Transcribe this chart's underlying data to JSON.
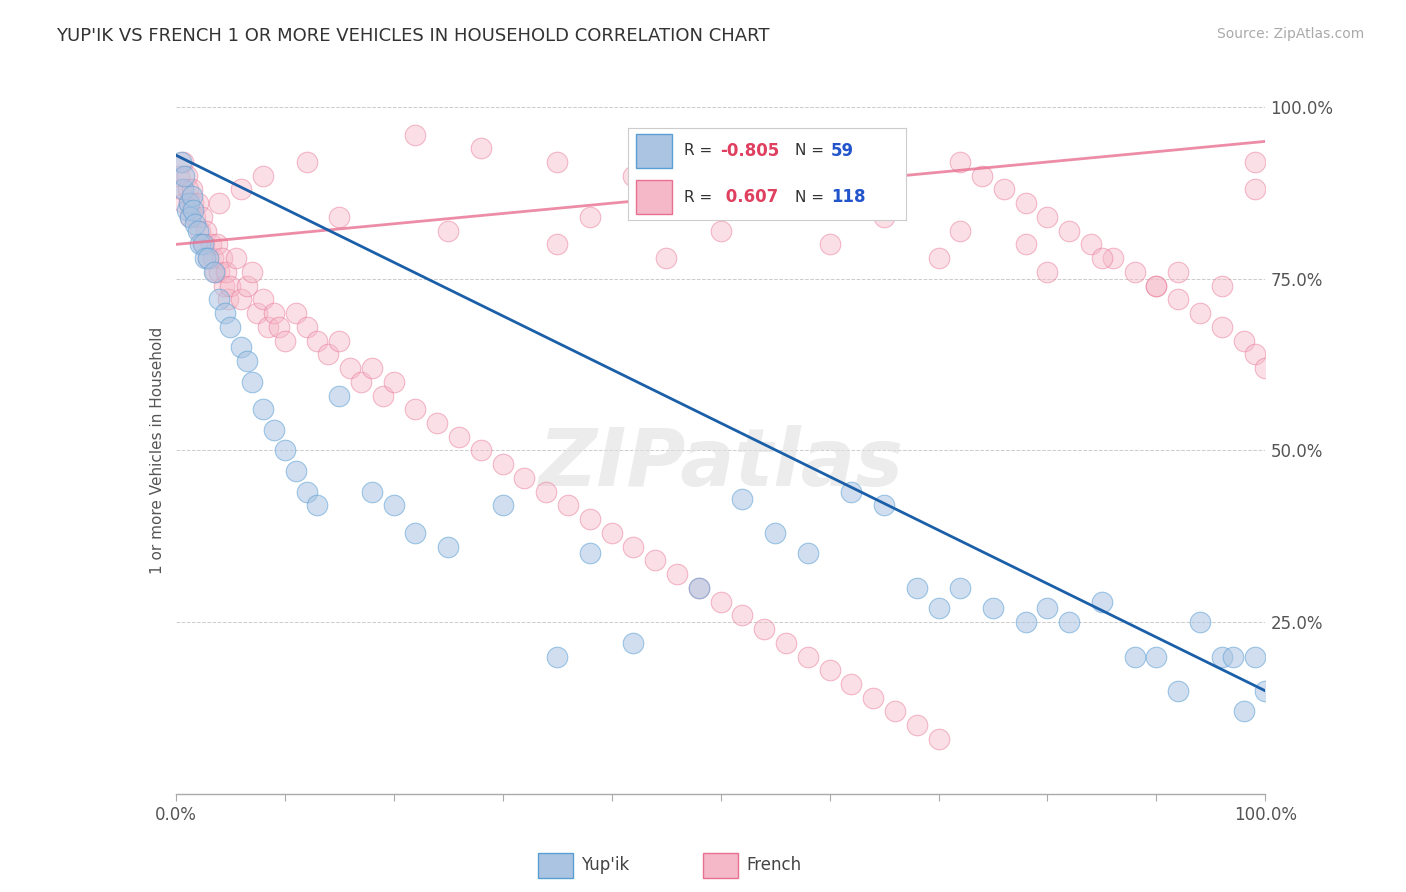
{
  "title": "YUP'IK VS FRENCH 1 OR MORE VEHICLES IN HOUSEHOLD CORRELATION CHART",
  "source_text": "Source: ZipAtlas.com",
  "ylabel": "1 or more Vehicles in Household",
  "yupik_color": "#aac4e2",
  "yupik_edge_color": "#5a9fd4",
  "french_color": "#f5b8c8",
  "french_edge_color": "#e87090",
  "yupik_line_color": "#1a5fa8",
  "french_line_color": "#e87090",
  "background_color": "#ffffff",
  "watermark_text": "ZIPatlas",
  "R_yupik": "-0.805",
  "N_yupik": "59",
  "R_french": "0.607",
  "N_french": "118",
  "yupik_scatter_x": [
    0.005,
    0.007,
    0.008,
    0.01,
    0.012,
    0.013,
    0.015,
    0.016,
    0.018,
    0.02,
    0.022,
    0.025,
    0.027,
    0.03,
    0.035,
    0.04,
    0.045,
    0.05,
    0.06,
    0.065,
    0.07,
    0.08,
    0.09,
    0.1,
    0.11,
    0.12,
    0.13,
    0.15,
    0.18,
    0.2,
    0.22,
    0.25,
    0.3,
    0.35,
    0.38,
    0.42,
    0.48,
    0.52,
    0.55,
    0.58,
    0.62,
    0.65,
    0.68,
    0.7,
    0.72,
    0.75,
    0.78,
    0.8,
    0.82,
    0.85,
    0.88,
    0.9,
    0.92,
    0.94,
    0.96,
    0.97,
    0.98,
    0.99,
    1.0
  ],
  "yupik_scatter_y": [
    0.92,
    0.88,
    0.9,
    0.85,
    0.86,
    0.84,
    0.87,
    0.85,
    0.83,
    0.82,
    0.8,
    0.8,
    0.78,
    0.78,
    0.76,
    0.72,
    0.7,
    0.68,
    0.65,
    0.63,
    0.6,
    0.56,
    0.53,
    0.5,
    0.47,
    0.44,
    0.42,
    0.58,
    0.44,
    0.42,
    0.38,
    0.36,
    0.42,
    0.2,
    0.35,
    0.22,
    0.3,
    0.43,
    0.38,
    0.35,
    0.44,
    0.42,
    0.3,
    0.27,
    0.3,
    0.27,
    0.25,
    0.27,
    0.25,
    0.28,
    0.2,
    0.2,
    0.15,
    0.25,
    0.2,
    0.2,
    0.12,
    0.2,
    0.15
  ],
  "french_scatter_x": [
    0.003,
    0.005,
    0.007,
    0.008,
    0.01,
    0.011,
    0.012,
    0.013,
    0.015,
    0.016,
    0.018,
    0.02,
    0.022,
    0.024,
    0.026,
    0.028,
    0.03,
    0.032,
    0.034,
    0.036,
    0.038,
    0.04,
    0.042,
    0.044,
    0.046,
    0.048,
    0.05,
    0.055,
    0.06,
    0.065,
    0.07,
    0.075,
    0.08,
    0.085,
    0.09,
    0.095,
    0.1,
    0.11,
    0.12,
    0.13,
    0.14,
    0.15,
    0.16,
    0.17,
    0.18,
    0.19,
    0.2,
    0.22,
    0.24,
    0.26,
    0.28,
    0.3,
    0.32,
    0.34,
    0.36,
    0.38,
    0.4,
    0.42,
    0.44,
    0.46,
    0.48,
    0.5,
    0.52,
    0.54,
    0.56,
    0.58,
    0.6,
    0.62,
    0.64,
    0.66,
    0.68,
    0.7,
    0.72,
    0.74,
    0.76,
    0.78,
    0.8,
    0.82,
    0.84,
    0.86,
    0.88,
    0.9,
    0.92,
    0.94,
    0.96,
    0.98,
    0.99,
    1.0,
    0.45,
    0.55,
    0.38,
    0.5,
    0.6,
    0.7,
    0.8,
    0.9,
    0.22,
    0.28,
    0.35,
    0.42,
    0.5,
    0.58,
    0.65,
    0.72,
    0.78,
    0.85,
    0.92,
    0.96,
    0.99,
    0.99,
    0.12,
    0.08,
    0.06,
    0.04,
    0.15,
    0.25,
    0.35,
    0.45
  ],
  "french_scatter_y": [
    0.9,
    0.88,
    0.92,
    0.86,
    0.9,
    0.88,
    0.86,
    0.84,
    0.88,
    0.86,
    0.84,
    0.86,
    0.82,
    0.84,
    0.8,
    0.82,
    0.78,
    0.8,
    0.78,
    0.76,
    0.8,
    0.76,
    0.78,
    0.74,
    0.76,
    0.72,
    0.74,
    0.78,
    0.72,
    0.74,
    0.76,
    0.7,
    0.72,
    0.68,
    0.7,
    0.68,
    0.66,
    0.7,
    0.68,
    0.66,
    0.64,
    0.66,
    0.62,
    0.6,
    0.62,
    0.58,
    0.6,
    0.56,
    0.54,
    0.52,
    0.5,
    0.48,
    0.46,
    0.44,
    0.42,
    0.4,
    0.38,
    0.36,
    0.34,
    0.32,
    0.3,
    0.28,
    0.26,
    0.24,
    0.22,
    0.2,
    0.18,
    0.16,
    0.14,
    0.12,
    0.1,
    0.08,
    0.92,
    0.9,
    0.88,
    0.86,
    0.84,
    0.82,
    0.8,
    0.78,
    0.76,
    0.74,
    0.72,
    0.7,
    0.68,
    0.66,
    0.64,
    0.62,
    0.88,
    0.86,
    0.84,
    0.82,
    0.8,
    0.78,
    0.76,
    0.74,
    0.96,
    0.94,
    0.92,
    0.9,
    0.88,
    0.86,
    0.84,
    0.82,
    0.8,
    0.78,
    0.76,
    0.74,
    0.92,
    0.88,
    0.92,
    0.9,
    0.88,
    0.86,
    0.84,
    0.82,
    0.8,
    0.78
  ]
}
